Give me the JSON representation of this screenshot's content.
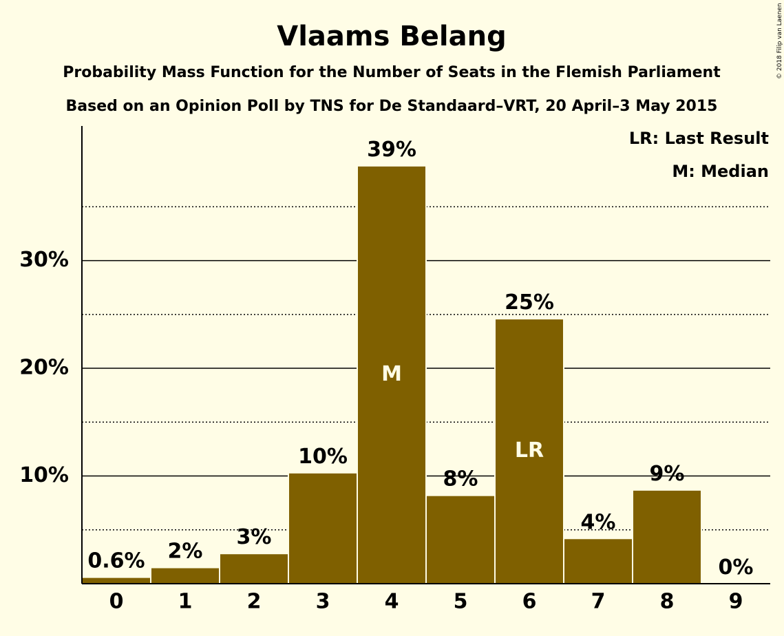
{
  "colors": {
    "background": "#FFFDE6",
    "bar": "#7F6000",
    "bar_outline": "#FFFDE6",
    "text": "#000000",
    "inner_label": "#FFFDE6"
  },
  "copyright": "© 2018 Filip van Laenen",
  "legend": {
    "last_result": "LR: Last Result",
    "median": "M: Median"
  },
  "chart_data": {
    "type": "bar",
    "title": "Vlaams Belang",
    "subtitle": "Probability Mass Function for the Number of Seats in the Flemish Parliament",
    "subtitle2": "Based on an Opinion Poll by TNS for De Standaard–VRT, 20 April–3 May 2015",
    "xlabel": "",
    "ylabel": "",
    "categories": [
      "0",
      "1",
      "2",
      "3",
      "4",
      "5",
      "6",
      "7",
      "8",
      "9"
    ],
    "values": [
      0.6,
      1.5,
      2.8,
      10.3,
      38.8,
      8.2,
      24.6,
      4.2,
      8.7,
      0.0
    ],
    "data_labels": [
      "0.6%",
      "2%",
      "3%",
      "10%",
      "39%",
      "8%",
      "25%",
      "4%",
      "9%",
      "0%"
    ],
    "inner_labels": [
      {
        "category": "4",
        "text": "M"
      },
      {
        "category": "6",
        "text": "LR"
      }
    ],
    "ylim": [
      0,
      42.5
    ],
    "yticks": [
      10,
      20,
      30
    ],
    "ytick_labels": [
      "10%",
      "20%",
      "30%"
    ],
    "gridlines_solid": [
      10,
      20,
      30
    ],
    "gridlines_dotted": [
      5,
      15,
      25,
      35
    ],
    "legend_position": "top-right"
  }
}
